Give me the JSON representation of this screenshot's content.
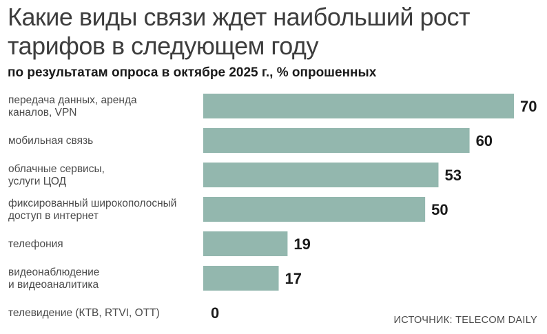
{
  "chart_data": {
    "type": "bar",
    "orientation": "horizontal",
    "title": "Какие виды связи ждет наибольший рост тарифов в следующем году",
    "subtitle": "по результатам опроса в октябре 2025 г., % опрошенных",
    "categories": [
      [
        "передача данных, аренда",
        "каналов, VPN"
      ],
      [
        "мобильная связь"
      ],
      [
        "облачные сервисы,",
        "услуги ЦОД"
      ],
      [
        "фиксированный широкополосный",
        "доступ в интернет"
      ],
      [
        "телефония"
      ],
      [
        "видеонаблюдение",
        "и видеоаналитика"
      ],
      [
        "телевидение (КТВ, RTVI, OTT)"
      ]
    ],
    "values": [
      70,
      60,
      53,
      50,
      19,
      17,
      0
    ],
    "xlim": [
      0,
      70
    ],
    "bar_color": "#93b7ae",
    "grid": false,
    "source": "ИСТОЧНИК: TELECOM DAILY"
  }
}
